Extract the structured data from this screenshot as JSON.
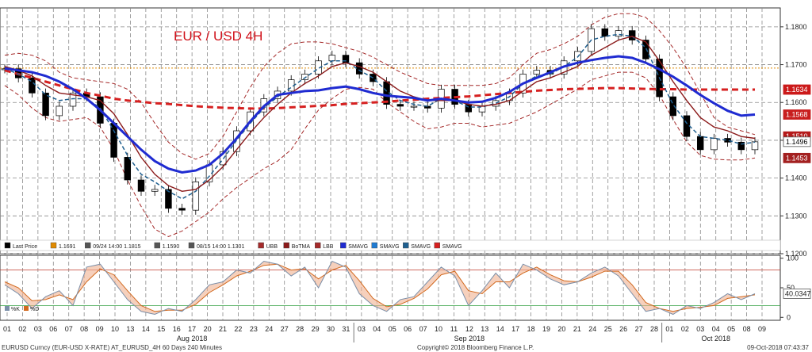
{
  "chart_data": [
    {
      "type": "line",
      "title": "EUR / USD 4H",
      "ylim": [
        1.12,
        1.185
      ],
      "y_ticks": [
        "1.1800",
        "1.1700",
        "1.1600",
        "1.1500",
        "1.1400",
        "1.1300",
        "1.1200"
      ],
      "right_tags": [
        {
          "value": "1.1634",
          "color": "#cc1a1a"
        },
        {
          "value": "1.1568",
          "color": "#c81e1e"
        },
        {
          "value": "1.1510",
          "color": "#b51a1a"
        },
        {
          "value": "1.1496",
          "color": "#ffffff"
        },
        {
          "value": "1.1453",
          "color": "#a32020"
        }
      ],
      "reference_line": 1.1691,
      "legend": [
        {
          "label": "Last Price",
          "color": "#000000"
        },
        {
          "label": "1.1691",
          "color": "#e08a00"
        },
        {
          "label": "09/24 14:00 1.1815",
          "color": "#555555"
        },
        {
          "label": "1.1590",
          "color": "#555555"
        },
        {
          "label": "08/15 14:00 1.1301",
          "color": "#555555"
        },
        {
          "label": "UBB",
          "color": "#a52a2a"
        },
        {
          "label": "BoTMA",
          "color": "#8b1a1a"
        },
        {
          "label": "LBB",
          "color": "#a52a2a"
        },
        {
          "label": "SMAVG",
          "color": "#1f2bd1"
        },
        {
          "label": "SMAVG",
          "color": "#1f7ad1"
        },
        {
          "label": "SMAVG",
          "color": "#1f5f8f"
        },
        {
          "label": "SMAVG",
          "color": "#d62020"
        }
      ],
      "series": [
        {
          "values": [
            1.1689,
            1.1665,
            1.1625,
            1.1565,
            1.159,
            1.1625,
            1.1615,
            1.1545,
            1.1455,
            1.1395,
            1.1365,
            1.137,
            1.132,
            1.1315,
            1.139,
            1.1435,
            1.147,
            1.1525,
            1.1575,
            1.161,
            1.163,
            1.166,
            1.1675,
            1.171,
            1.1725,
            1.1705,
            1.1675,
            1.1655,
            1.1595,
            1.159,
            1.159,
            1.1585,
            1.1635,
            1.1595,
            1.1575,
            1.159,
            1.1605,
            1.1625,
            1.1675,
            1.1685,
            1.1675,
            1.171,
            1.1735,
            1.1795,
            1.1775,
            1.179,
            1.1765,
            1.1715,
            1.1615,
            1.1565,
            1.151,
            1.1475,
            1.1505,
            1.1495,
            1.1475,
            1.1496
          ]
        },
        {
          "values": [
            1.169,
            1.1675,
            1.1655,
            1.162,
            1.1605,
            1.161,
            1.161,
            1.1585,
            1.1525,
            1.146,
            1.141,
            1.139,
            1.1365,
            1.1345,
            1.1365,
            1.1405,
            1.145,
            1.15,
            1.1545,
            1.1585,
            1.1615,
            1.164,
            1.1665,
            1.169,
            1.171,
            1.171,
            1.1685,
            1.1665,
            1.163,
            1.1605,
            1.1595,
            1.159,
            1.161,
            1.1605,
            1.1588,
            1.1588,
            1.1598,
            1.1615,
            1.165,
            1.167,
            1.1675,
            1.1695,
            1.172,
            1.1765,
            1.1775,
            1.178,
            1.1775,
            1.1745,
            1.1665,
            1.1595,
            1.1545,
            1.151,
            1.1505,
            1.15,
            1.149,
            1.1495
          ]
        },
        {
          "values": [
            1.1695,
            1.1685,
            1.167,
            1.1645,
            1.1625,
            1.162,
            1.1615,
            1.1605,
            1.157,
            1.1515,
            1.1455,
            1.141,
            1.138,
            1.1365,
            1.137,
            1.1395,
            1.143,
            1.1475,
            1.152,
            1.156,
            1.1595,
            1.1625,
            1.165,
            1.167,
            1.1695,
            1.1705,
            1.1695,
            1.168,
            1.1655,
            1.163,
            1.1615,
            1.1605,
            1.1605,
            1.1605,
            1.1595,
            1.159,
            1.1595,
            1.1605,
            1.163,
            1.1655,
            1.1665,
            1.168,
            1.1695,
            1.1725,
            1.1745,
            1.1765,
            1.1775,
            1.176,
            1.171,
            1.1655,
            1.1605,
            1.156,
            1.1535,
            1.1525,
            1.151,
            1.1505
          ]
        },
        {
          "values": [
            1.169,
            1.1685,
            1.168,
            1.167,
            1.1655,
            1.1635,
            1.161,
            1.158,
            1.1545,
            1.151,
            1.1475,
            1.1445,
            1.1425,
            1.1415,
            1.142,
            1.1435,
            1.1465,
            1.1505,
            1.155,
            1.159,
            1.162,
            1.1625,
            1.163,
            1.1632,
            1.1638,
            1.1642,
            1.1635,
            1.1625,
            1.1618,
            1.1615,
            1.1612,
            1.1605,
            1.161,
            1.1605,
            1.16,
            1.1602,
            1.1612,
            1.1628,
            1.165,
            1.1665,
            1.168,
            1.1695,
            1.1705,
            1.1712,
            1.1718,
            1.1722,
            1.1718,
            1.1705,
            1.1688,
            1.1668,
            1.1645,
            1.162,
            1.1598,
            1.1578,
            1.1565,
            1.1568
          ]
        },
        {
          "values": [
            1.1685,
            1.1675,
            1.1665,
            1.1655,
            1.1645,
            1.1635,
            1.1625,
            1.1618,
            1.161,
            1.1605,
            1.1602,
            1.1598,
            1.1596,
            1.1593,
            1.159,
            1.1588,
            1.1586,
            1.1585,
            1.1584,
            1.1584,
            1.1585,
            1.1587,
            1.1589,
            1.1591,
            1.1593,
            1.1596,
            1.1598,
            1.16,
            1.1602,
            1.1605,
            1.1607,
            1.161,
            1.1612,
            1.1614,
            1.1616,
            1.1619,
            1.1622,
            1.1625,
            1.1628,
            1.1631,
            1.1633,
            1.1635,
            1.1636,
            1.1637,
            1.1638,
            1.1638,
            1.1637,
            1.1636,
            1.1635,
            1.1635,
            1.1634,
            1.1634,
            1.1634,
            1.1634,
            1.1634,
            1.1634
          ]
        },
        {
          "values": [
            1.1725,
            1.173,
            1.1725,
            1.171,
            1.168,
            1.1665,
            1.166,
            1.1655,
            1.165,
            1.1635,
            1.16,
            1.1545,
            1.1495,
            1.1465,
            1.145,
            1.1465,
            1.151,
            1.1575,
            1.164,
            1.1695,
            1.173,
            1.1755,
            1.176,
            1.176,
            1.1755,
            1.1745,
            1.1735,
            1.172,
            1.17,
            1.168,
            1.1665,
            1.165,
            1.1645,
            1.1645,
            1.1645,
            1.1645,
            1.165,
            1.1665,
            1.17,
            1.173,
            1.174,
            1.1755,
            1.1775,
            1.1805,
            1.1825,
            1.1835,
            1.1835,
            1.1825,
            1.179,
            1.1745,
            1.169,
            1.1625,
            1.156,
            1.1535,
            1.1525,
            1.1515
          ]
        },
        {
          "values": [
            1.1645,
            1.162,
            1.1585,
            1.156,
            1.155,
            1.1555,
            1.156,
            1.1535,
            1.1475,
            1.1395,
            1.1325,
            1.1265,
            1.1245,
            1.126,
            1.1285,
            1.131,
            1.1345,
            1.1375,
            1.14,
            1.1425,
            1.1445,
            1.1475,
            1.153,
            1.158,
            1.161,
            1.1635,
            1.164,
            1.1635,
            1.16,
            1.1575,
            1.155,
            1.153,
            1.1535,
            1.1545,
            1.1545,
            1.1535,
            1.154,
            1.1545,
            1.156,
            1.1575,
            1.1595,
            1.1615,
            1.1635,
            1.166,
            1.167,
            1.168,
            1.168,
            1.1665,
            1.162,
            1.1555,
            1.1495,
            1.146,
            1.145,
            1.1448,
            1.1448,
            1.1453
          ]
        }
      ]
    },
    {
      "type": "line",
      "ylim": [
        -5,
        105
      ],
      "y_ticks": [
        "100",
        "50",
        "0"
      ],
      "current_value": "40.0347",
      "legend": [
        "%K",
        "%D"
      ],
      "overbought": 80,
      "oversold": 20,
      "series": [
        {
          "values": [
            55,
            40,
            15,
            35,
            45,
            20,
            85,
            90,
            60,
            30,
            10,
            5,
            15,
            10,
            30,
            55,
            60,
            80,
            75,
            95,
            90,
            70,
            85,
            50,
            95,
            85,
            40,
            20,
            10,
            30,
            35,
            60,
            85,
            70,
            20,
            45,
            75,
            50,
            90,
            80,
            65,
            55,
            60,
            75,
            85,
            70,
            40,
            10,
            15,
            5,
            20,
            15,
            25,
            40,
            30,
            40
          ]
        },
        {
          "values": [
            60,
            50,
            28,
            30,
            38,
            30,
            60,
            82,
            72,
            45,
            20,
            10,
            12,
            12,
            22,
            42,
            55,
            70,
            78,
            88,
            90,
            80,
            82,
            65,
            80,
            88,
            62,
            32,
            18,
            22,
            32,
            48,
            72,
            78,
            45,
            40,
            60,
            60,
            75,
            85,
            72,
            62,
            60,
            68,
            78,
            78,
            55,
            25,
            15,
            10,
            15,
            17,
            20,
            32,
            35,
            38
          ]
        }
      ]
    }
  ],
  "x_axis": {
    "days": [
      "01",
      "02",
      "03",
      "06",
      "07",
      "08",
      "09",
      "10",
      "13",
      "14",
      "15",
      "16",
      "17",
      "20",
      "21",
      "22",
      "23",
      "24",
      "27",
      "28",
      "29",
      "30",
      "31",
      "03",
      "04",
      "05",
      "06",
      "07",
      "10",
      "11",
      "12",
      "13",
      "14",
      "17",
      "18",
      "19",
      "20",
      "21",
      "24",
      "25",
      "26",
      "27",
      "28",
      "01",
      "02",
      "03",
      "04",
      "05",
      "08",
      "09"
    ],
    "months": [
      "Aug 2018",
      "Sep 2018",
      "Oct 2018"
    ]
  },
  "footer": {
    "left": "EURUSD Curncy (EUR-USD X-RATE) AT_EURUSD_4H 60 Days 240 Minutes",
    "center": "Copyright© 2018 Bloomberg Finance L.P.",
    "right": "09-Oct-2018 07:43:37"
  },
  "colors": {
    "ma_long": "#1f2bd1",
    "ma_slow": "#d62020",
    "ma_short": "#1f5f8f",
    "middle_band": "#8b1a1a",
    "bands": "#a52a2a",
    "reference": "#e08a00",
    "stoch_k": "#7a8ea8",
    "stoch_d": "#d2691e",
    "fill": "#f0b090"
  }
}
